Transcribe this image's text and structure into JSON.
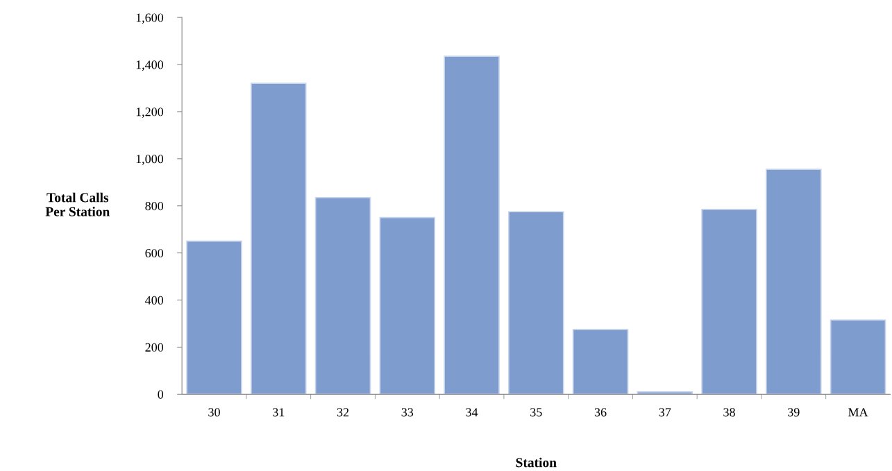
{
  "chart_data": {
    "type": "bar",
    "xlabel": "Station",
    "ylabel": "Total Calls\nPer Station",
    "categories": [
      "30",
      "31",
      "32",
      "33",
      "34",
      "35",
      "36",
      "37",
      "38",
      "39",
      "MA"
    ],
    "values": [
      650,
      1320,
      835,
      750,
      1435,
      775,
      275,
      10,
      785,
      955,
      315
    ],
    "color": "#7f9ccf",
    "ylim": [
      0,
      1600
    ],
    "yticks": [
      {
        "value": 0,
        "label": "0"
      },
      {
        "value": 200,
        "label": "200"
      },
      {
        "value": 400,
        "label": "400"
      },
      {
        "value": 600,
        "label": "600"
      },
      {
        "value": 800,
        "label": "800"
      },
      {
        "value": 1000,
        "label": "1,000"
      },
      {
        "value": 1200,
        "label": "1,200"
      },
      {
        "value": 1400,
        "label": "1,400"
      },
      {
        "value": 1600,
        "label": "1,600"
      }
    ],
    "grid": false,
    "legend": false
  }
}
